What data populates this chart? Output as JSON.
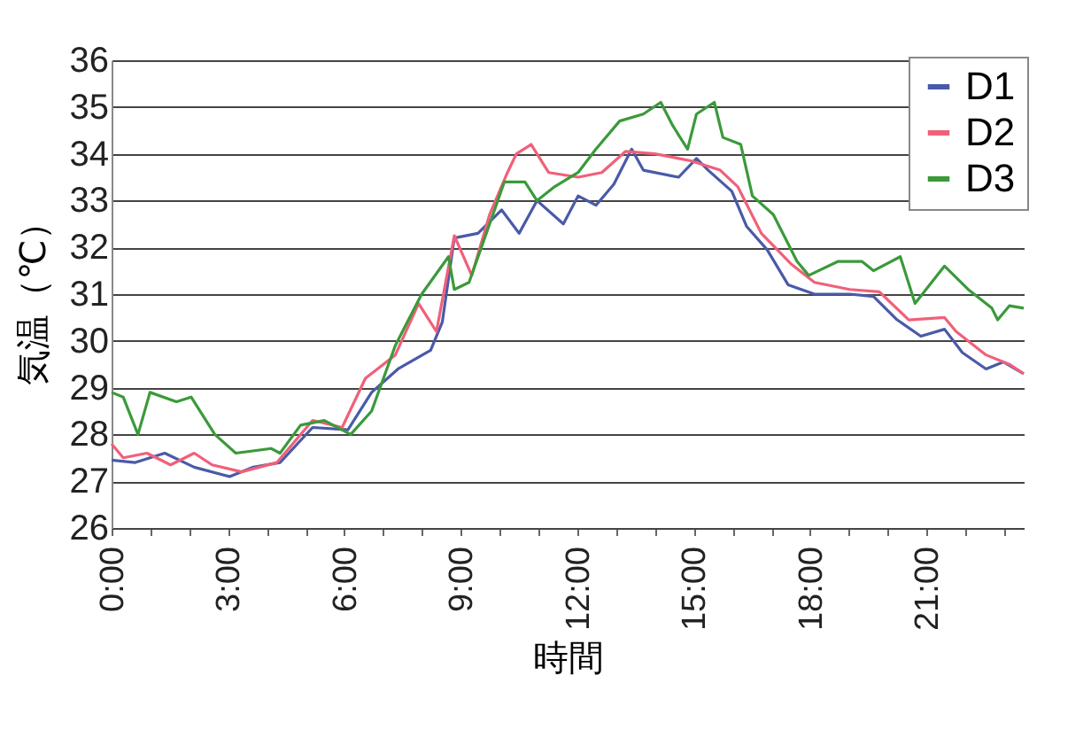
{
  "chart_data": {
    "type": "line",
    "xlabel": "時間",
    "ylabel": "気温（℃）",
    "xlim": [
      0,
      23.5
    ],
    "ylim": [
      26,
      36
    ],
    "yticks": [
      26,
      27,
      28,
      29,
      30,
      31,
      32,
      33,
      34,
      35,
      36
    ],
    "xticks": [
      {
        "value": 0,
        "label": "0:00"
      },
      {
        "value": 1,
        "label": null
      },
      {
        "value": 2,
        "label": null
      },
      {
        "value": 3,
        "label": "3:00"
      },
      {
        "value": 4,
        "label": null
      },
      {
        "value": 5,
        "label": null
      },
      {
        "value": 6,
        "label": "6:00"
      },
      {
        "value": 7,
        "label": null
      },
      {
        "value": 8,
        "label": null
      },
      {
        "value": 9,
        "label": "9:00"
      },
      {
        "value": 10,
        "label": null
      },
      {
        "value": 11,
        "label": null
      },
      {
        "value": 12,
        "label": "12:00"
      },
      {
        "value": 13,
        "label": null
      },
      {
        "value": 14,
        "label": null
      },
      {
        "value": 15,
        "label": "15:00"
      },
      {
        "value": 16,
        "label": null
      },
      {
        "value": 17,
        "label": null
      },
      {
        "value": 18,
        "label": "18:00"
      },
      {
        "value": 19,
        "label": null
      },
      {
        "value": 20,
        "label": null
      },
      {
        "value": 21,
        "label": "21:00"
      },
      {
        "value": 22,
        "label": null
      },
      {
        "value": 23,
        "label": null
      }
    ],
    "grid": "y",
    "legend": "top right",
    "marker": "none",
    "line_style": "solid",
    "series": [
      {
        "name": "D1",
        "color": "#4a5aa8",
        "x": [
          0,
          0.61,
          1.37,
          2.13,
          3.04,
          3.65,
          4.34,
          5.18,
          6.09,
          6.7,
          7.38,
          8.22,
          8.52,
          8.83,
          9.44,
          10.05,
          10.5,
          10.96,
          11.64,
          12.02,
          12.48,
          12.94,
          13.4,
          13.7,
          14.61,
          15.07,
          15.37,
          15.98,
          16.36,
          16.89,
          17.43,
          18.11,
          19.02,
          19.63,
          20.24,
          20.85,
          21.46,
          21.92,
          22.53,
          22.98,
          23.5
        ],
        "values": [
          27.45,
          27.4,
          27.6,
          27.3,
          27.1,
          27.3,
          27.4,
          28.15,
          28.1,
          28.9,
          29.4,
          29.8,
          30.4,
          32.2,
          32.3,
          32.8,
          32.3,
          33.0,
          32.5,
          33.1,
          32.9,
          33.35,
          34.1,
          33.65,
          33.5,
          33.9,
          33.65,
          33.2,
          32.45,
          31.95,
          31.2,
          31.0,
          31.0,
          30.95,
          30.45,
          30.1,
          30.25,
          29.75,
          29.4,
          29.55,
          29.3
        ]
      },
      {
        "name": "D2",
        "color": "#f0607a",
        "x": [
          0,
          0.3,
          0.91,
          1.52,
          2.13,
          2.59,
          3.35,
          4.26,
          5.18,
          5.94,
          6.54,
          6.85,
          7.31,
          7.91,
          8.37,
          8.83,
          9.28,
          9.74,
          10.2,
          10.43,
          10.81,
          11.26,
          12.02,
          12.63,
          13.24,
          14.0,
          14.92,
          15.68,
          16.13,
          16.74,
          17.5,
          18.11,
          19.02,
          19.78,
          20.54,
          21.46,
          21.76,
          22.53,
          23.13,
          23.5
        ],
        "values": [
          27.8,
          27.5,
          27.6,
          27.35,
          27.6,
          27.35,
          27.2,
          27.4,
          28.3,
          28.15,
          29.2,
          29.4,
          29.7,
          30.8,
          30.2,
          32.25,
          31.4,
          32.7,
          33.6,
          34.0,
          34.2,
          33.6,
          33.5,
          33.6,
          34.05,
          34.0,
          33.85,
          33.65,
          33.3,
          32.3,
          31.65,
          31.25,
          31.1,
          31.05,
          30.45,
          30.5,
          30.2,
          29.7,
          29.5,
          29.3
        ]
      },
      {
        "name": "D3",
        "color": "#3a9a3a",
        "x": [
          0,
          0.3,
          0.68,
          0.99,
          1.67,
          2.05,
          2.66,
          3.2,
          4.11,
          4.34,
          4.87,
          5.48,
          6.16,
          6.7,
          7.31,
          7.99,
          8.68,
          8.83,
          9.21,
          9.74,
          10.12,
          10.65,
          10.96,
          11.42,
          12.02,
          12.48,
          13.09,
          13.7,
          14.15,
          14.46,
          14.84,
          15.07,
          15.53,
          15.75,
          16.21,
          16.51,
          17.05,
          17.66,
          17.96,
          18.72,
          19.33,
          19.63,
          20.32,
          20.7,
          21.46,
          22.07,
          22.68,
          22.83,
          23.13,
          23.5
        ],
        "values": [
          28.9,
          28.8,
          28.0,
          28.9,
          28.7,
          28.8,
          28.0,
          27.6,
          27.7,
          27.6,
          28.2,
          28.3,
          28.0,
          28.5,
          29.9,
          31.0,
          31.8,
          31.1,
          31.25,
          32.5,
          33.4,
          33.4,
          33.0,
          33.3,
          33.6,
          34.1,
          34.7,
          34.85,
          35.1,
          34.6,
          34.1,
          34.85,
          35.1,
          34.35,
          34.2,
          33.1,
          32.7,
          31.7,
          31.4,
          31.7,
          31.7,
          31.5,
          31.8,
          30.8,
          31.6,
          31.1,
          30.7,
          30.45,
          30.75,
          30.7
        ]
      }
    ]
  }
}
